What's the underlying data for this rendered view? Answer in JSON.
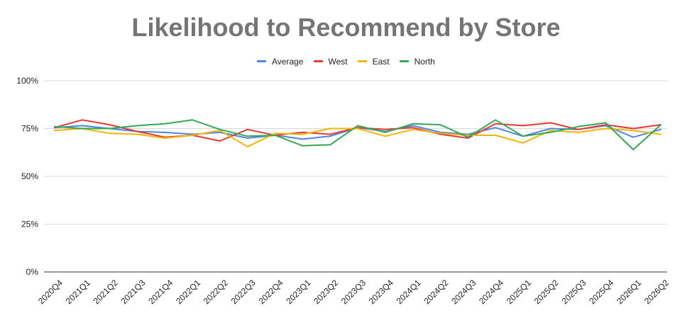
{
  "chart_data": {
    "type": "line",
    "title": "Likelihood to Recommend by Store",
    "xlabel": "",
    "ylabel": "",
    "ylim": [
      0,
      100
    ],
    "y_ticks": [
      "0%",
      "25%",
      "50%",
      "75%",
      "100%"
    ],
    "grid": true,
    "legend_position": "top",
    "categories": [
      "2020Q4",
      "2021Q1",
      "2021Q2",
      "2021Q3",
      "2021Q4",
      "2022Q1",
      "2022Q2",
      "2022Q3",
      "2022Q4",
      "2023Q1",
      "2023Q2",
      "2023Q3",
      "2023Q4",
      "2024Q1",
      "2024Q2",
      "2024Q3",
      "2024Q4",
      "2025Q1",
      "2025Q2",
      "2025Q3",
      "2025Q4",
      "2026Q1",
      "2026Q2"
    ],
    "series": [
      {
        "name": "Average",
        "color": "#4a86e8",
        "values": [
          75.5,
          76.5,
          75,
          73.5,
          73,
          72,
          73,
          70,
          71.5,
          69.5,
          71,
          75.5,
          73.5,
          76.5,
          73,
          72,
          75.5,
          71,
          75,
          74.5,
          76.5,
          70.5,
          74.5
        ]
      },
      {
        "name": "West",
        "color": "#e53935",
        "values": [
          75.5,
          79.5,
          77,
          73.5,
          70.5,
          71.5,
          68.5,
          74.5,
          71.5,
          73,
          72,
          75.5,
          74.5,
          75.5,
          72,
          70,
          77.5,
          76.5,
          78,
          74.5,
          77,
          75,
          77
        ]
      },
      {
        "name": "East",
        "color": "#f4b400",
        "values": [
          74,
          75,
          72.5,
          72,
          70,
          71.5,
          74,
          65.5,
          72.5,
          72,
          75,
          75,
          71,
          74.5,
          72.5,
          71.5,
          71.5,
          67.5,
          74,
          73,
          75,
          74,
          72
        ]
      },
      {
        "name": "North",
        "color": "#34a853",
        "values": [
          76,
          75,
          75,
          76.5,
          77.5,
          79.5,
          74.5,
          71,
          71.5,
          66,
          66.5,
          76.5,
          73,
          77.5,
          77,
          70.5,
          79.5,
          71,
          73,
          76,
          78,
          64,
          77
        ]
      }
    ]
  }
}
